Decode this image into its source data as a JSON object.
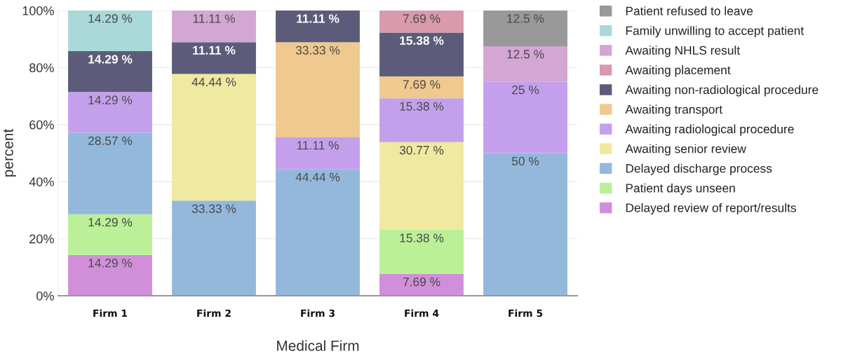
{
  "chart_data": {
    "type": "bar",
    "stacked": true,
    "xlabel": "Medical Firm",
    "ylabel": "percent",
    "categories": [
      "Firm 1",
      "Firm 2",
      "Firm 3",
      "Firm 4",
      "Firm 5"
    ],
    "ylim": [
      0,
      100
    ],
    "yticks": [
      {
        "value": 0,
        "label": "0%"
      },
      {
        "value": 20,
        "label": "20%"
      },
      {
        "value": 40,
        "label": "40%"
      },
      {
        "value": 60,
        "label": "60%"
      },
      {
        "value": 80,
        "label": "80%"
      },
      {
        "value": 100,
        "label": "100%"
      }
    ],
    "grid": "y",
    "legend": "right",
    "series": [
      {
        "name": "Delayed review of report/results",
        "color": "#d18fd9",
        "values": [
          14.29,
          null,
          null,
          7.69,
          null
        ],
        "value_labels": [
          "14.29 %",
          null,
          null,
          "7.69 %",
          null
        ]
      },
      {
        "name": "Patient days unseen",
        "color": "#bbf098",
        "values": [
          14.29,
          null,
          null,
          15.38,
          null
        ],
        "value_labels": [
          "14.29 %",
          null,
          null,
          "15.38 %",
          null
        ]
      },
      {
        "name": "Delayed discharge process",
        "color": "#94b8dc",
        "values": [
          28.57,
          33.33,
          44.44,
          null,
          50
        ],
        "value_labels": [
          "28.57 %",
          "33.33 %",
          "44.44 %",
          null,
          "50 %"
        ]
      },
      {
        "name": "Awaiting senior review",
        "color": "#f0e9a0",
        "values": [
          null,
          44.44,
          null,
          30.77,
          null
        ],
        "value_labels": [
          null,
          "44.44 %",
          null,
          "30.77 %",
          null
        ]
      },
      {
        "name": "Awaiting radiological procedure",
        "color": "#c4a0ec",
        "values": [
          14.29,
          null,
          11.11,
          15.38,
          25
        ],
        "value_labels": [
          "14.29 %",
          null,
          "11.11 %",
          "15.38 %",
          "25 %"
        ]
      },
      {
        "name": "Awaiting transport",
        "color": "#f0c98f",
        "values": [
          null,
          null,
          33.33,
          7.69,
          null
        ],
        "value_labels": [
          null,
          null,
          "33.33 %",
          "7.69 %",
          null
        ]
      },
      {
        "name": "Awaiting non-radiological procedure",
        "color": "#5c5c7a",
        "values": [
          14.29,
          11.11,
          11.11,
          15.38,
          null
        ],
        "value_labels": [
          "14.29 %",
          "11.11 %",
          "11.11 %",
          "15.38 %",
          null
        ]
      },
      {
        "name": "Awaiting placement",
        "color": "#d89aac",
        "values": [
          null,
          null,
          null,
          7.69,
          null
        ],
        "value_labels": [
          null,
          null,
          null,
          "7.69 %",
          null
        ]
      },
      {
        "name": "Awaiting NHLS result",
        "color": "#d4a6d4",
        "values": [
          null,
          11.11,
          null,
          null,
          12.5
        ],
        "value_labels": [
          null,
          "11.11 %",
          null,
          null,
          "12.5 %"
        ]
      },
      {
        "name": "Family unwilling to accept patient",
        "color": "#a9d9d9",
        "values": [
          14.29,
          null,
          null,
          null,
          null
        ],
        "value_labels": [
          "14.29 %",
          null,
          null,
          null,
          null
        ]
      },
      {
        "name": "Patient refused to leave",
        "color": "#999999",
        "values": [
          null,
          null,
          null,
          null,
          12.5
        ],
        "value_labels": [
          null,
          null,
          null,
          null,
          "12.5 %"
        ]
      }
    ]
  }
}
